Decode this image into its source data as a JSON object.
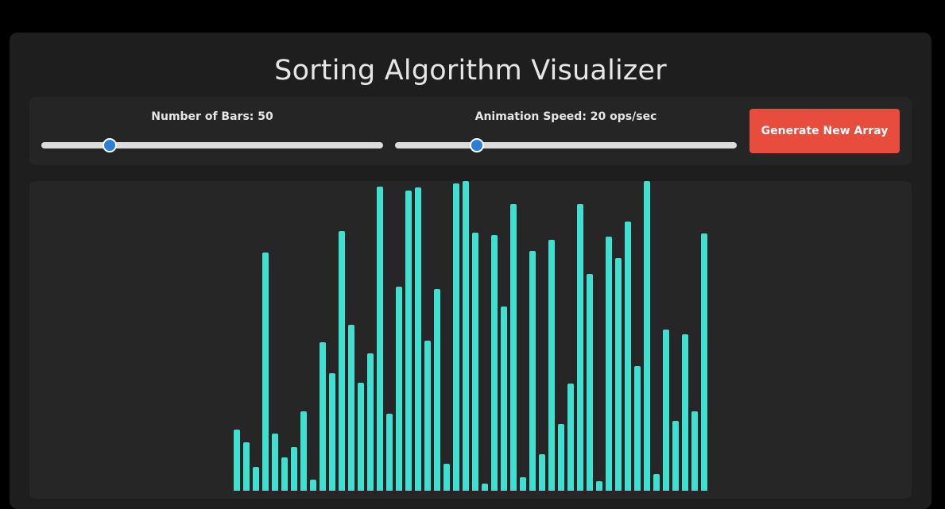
{
  "app": {
    "title": "Sorting Algorithm Visualizer"
  },
  "controls": {
    "bars_label": "Number of Bars: 50",
    "bars_value": 50,
    "bars_slider_fraction": 0.2,
    "speed_label": "Animation Speed: 20 ops/sec",
    "speed_value": 20,
    "speed_slider_fraction": 0.24,
    "generate_label": "Generate New Array"
  },
  "colors": {
    "bar": "#40e0d0",
    "accent": "#e74c3c",
    "thumb": "#2d7fd6"
  },
  "array": {
    "max": 390,
    "values": [
      77,
      61,
      30,
      300,
      72,
      42,
      55,
      100,
      14,
      187,
      148,
      327,
      209,
      136,
      173,
      383,
      97,
      257,
      378,
      382,
      189,
      254,
      34,
      387,
      390,
      325,
      9,
      322,
      232,
      361,
      17,
      302,
      46,
      316,
      84,
      135,
      361,
      273,
      12,
      320,
      293,
      339,
      157,
      390,
      21,
      203,
      88,
      197,
      100,
      324
    ]
  }
}
